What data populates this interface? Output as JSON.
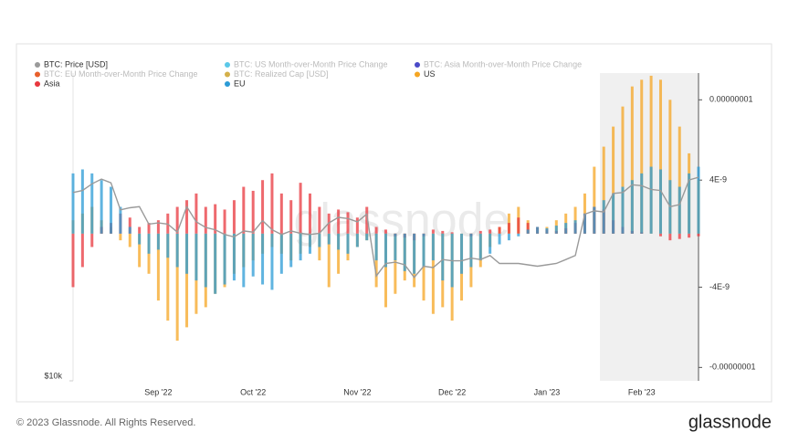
{
  "chart_data": {
    "type": "bar-line",
    "watermark": "glassnode",
    "footer": "© 2023 Glassnode. All Rights Reserved.",
    "logo": "glassnode",
    "categories": [
      null,
      null,
      null,
      null,
      null,
      null,
      null,
      null,
      null,
      "Sep '22",
      null,
      null,
      null,
      null,
      null,
      null,
      null,
      null,
      null,
      "Oct '22",
      null,
      null,
      null,
      null,
      null,
      null,
      null,
      null,
      null,
      null,
      "Nov '22",
      null,
      null,
      null,
      null,
      null,
      null,
      null,
      null,
      null,
      "Dec '22",
      null,
      null,
      null,
      null,
      null,
      null,
      null,
      null,
      null,
      "Jan '23",
      null,
      null,
      null,
      null,
      null,
      null,
      null,
      null,
      null,
      "Feb '23",
      null,
      null,
      null,
      null,
      null,
      null
    ],
    "ylim": [
      10000,
      39000
    ],
    "yscale": "log",
    "yticks": [
      {
        "value": 10000,
        "label": "$10k"
      }
    ],
    "y2lim": [
      -1.1e-08,
      1.2e-08
    ],
    "y2ticks": [
      {
        "value": 1e-08,
        "label": "0.00000001"
      },
      {
        "value": 4e-09,
        "label": "4E-9"
      },
      {
        "value": -4e-09,
        "label": "-4E-9"
      },
      {
        "value": -1e-08,
        "label": "-0.00000001"
      }
    ],
    "series": [
      {
        "name": "BTC: Price [USD]",
        "color": "#9a9a9a",
        "kind": "line",
        "values": [
          23000,
          23200,
          23900,
          24400,
          24000,
          21300,
          21500,
          21600,
          20000,
          20100,
          20000,
          19300,
          21600,
          20200,
          19700,
          19500,
          19100,
          18900,
          19400,
          19300,
          20300,
          19500,
          19100,
          19400,
          19200,
          19100,
          19200,
          20100,
          20600,
          20500,
          20200,
          20900,
          15900,
          16800,
          16900,
          16700,
          15800,
          16600,
          16500,
          17100,
          17000,
          17000,
          17200,
          17100,
          17400,
          16800,
          16800,
          16800,
          16700,
          16600,
          16700,
          16800,
          17100,
          17400,
          20900,
          21200,
          21100,
          22900,
          23000,
          23800,
          23700,
          23300,
          23200,
          21600,
          21800,
          24300,
          24600
        ]
      },
      {
        "name": "US",
        "color": "#f5a623",
        "kind": "bar",
        "axis": "y2",
        "values": [
          1e-09,
          1.5e-09,
          2e-09,
          1e-09,
          5e-10,
          -5e-10,
          -1e-09,
          -2.5e-09,
          -3e-09,
          -5e-09,
          -6.5e-09,
          -8e-09,
          -7e-09,
          -6e-09,
          -5.5e-09,
          -4.5e-09,
          -4e-09,
          -3e-09,
          -2.5e-09,
          -2e-09,
          -1.5e-09,
          -1e-09,
          -1.5e-09,
          -2e-09,
          -1.5e-09,
          -1e-09,
          -2e-09,
          -4e-09,
          -3e-09,
          -2e-09,
          -1e-09,
          -5e-10,
          -4e-09,
          -5.5e-09,
          -4.5e-09,
          -3.5e-09,
          -4e-09,
          -5e-09,
          -6e-09,
          -5.5e-09,
          -6.5e-09,
          -5e-09,
          -4e-09,
          -2.5e-09,
          -1e-09,
          5e-10,
          1.5e-09,
          2e-09,
          1e-09,
          5e-10,
          5e-10,
          1e-09,
          1.5e-09,
          2e-09,
          3e-09,
          5e-09,
          6.5e-09,
          8e-09,
          9.5e-09,
          1.1e-08,
          1.15e-08,
          1.18e-08,
          1.15e-08,
          1e-08,
          8e-09,
          6e-09,
          4e-09
        ]
      },
      {
        "name": "Asia",
        "color": "#e8373e",
        "kind": "bar",
        "axis": "y2",
        "values": [
          -4e-09,
          -2.5e-09,
          -1e-09,
          5e-10,
          8e-10,
          1.5e-09,
          1.2e-09,
          5e-10,
          8e-10,
          1e-09,
          1.5e-09,
          2e-09,
          2.5e-09,
          3e-09,
          2e-09,
          2.2e-09,
          1.8e-09,
          2.5e-09,
          3.5e-09,
          3.2e-09,
          4e-09,
          4.5e-09,
          3e-09,
          2.5e-09,
          3.8e-09,
          3e-09,
          2e-09,
          1.5e-09,
          1.8e-09,
          1.6e-09,
          1.2e-09,
          2e-09,
          5e-10,
          3e-10,
          -2e-10,
          -3e-10,
          -5e-10,
          -2e-10,
          3e-10,
          2e-10,
          1e-10,
          0,
          -2e-10,
          2e-10,
          3e-10,
          5e-10,
          8e-10,
          1.2e-09,
          8e-10,
          5e-10,
          3e-10,
          2e-10,
          4e-10,
          8e-10,
          1.5e-09,
          2e-09,
          1.8e-09,
          1e-09,
          5e-10,
          2e-10,
          1e-10,
          0,
          -2e-10,
          -5e-10,
          -4e-10,
          -3e-10,
          -2e-10
        ]
      },
      {
        "name": "EU",
        "color": "#2b9bd6",
        "kind": "bar",
        "axis": "y2",
        "values": [
          4.5e-09,
          4.8e-09,
          4.5e-09,
          4e-09,
          3.5e-09,
          2e-09,
          5e-10,
          -8e-10,
          -1.5e-09,
          -1.2e-09,
          -1.8e-09,
          -2.5e-09,
          -3e-09,
          -3.5e-09,
          -4e-09,
          -4.5e-09,
          -3.8e-09,
          -3.5e-09,
          -4e-09,
          -3.2e-09,
          -3.8e-09,
          -4.2e-09,
          -3e-09,
          -2.5e-09,
          -2e-09,
          -1.5e-09,
          -1e-09,
          -8e-10,
          -1.2e-09,
          -1.5e-09,
          -1e-09,
          -5e-10,
          -2e-09,
          -2.5e-09,
          -2e-09,
          -2.8e-09,
          -3e-09,
          -2.5e-09,
          -2e-09,
          -3.5e-09,
          -4e-09,
          -3e-09,
          -2.5e-09,
          -2e-09,
          -1.5e-09,
          -8e-10,
          -5e-10,
          -2e-10,
          3e-10,
          5e-10,
          4e-10,
          6e-10,
          8e-10,
          1e-09,
          1.5e-09,
          2e-09,
          2.5e-09,
          3e-09,
          3.5e-09,
          4e-09,
          4.5e-09,
          5e-09,
          4.8e-09,
          4e-09,
          3.5e-09,
          4.5e-09,
          5e-09
        ]
      }
    ],
    "hidden_series": [
      {
        "name": "BTC: US Month-over-Month Price Change",
        "color": "#5bc8e8"
      },
      {
        "name": "BTC: Asia Month-over-Month Price Change",
        "color": "#4a4ac8"
      },
      {
        "name": "BTC: EU Month-over-Month Price Change",
        "color": "#e8602c"
      },
      {
        "name": "BTC: Realized Cap [USD]",
        "color": "#d4b04a"
      }
    ]
  }
}
